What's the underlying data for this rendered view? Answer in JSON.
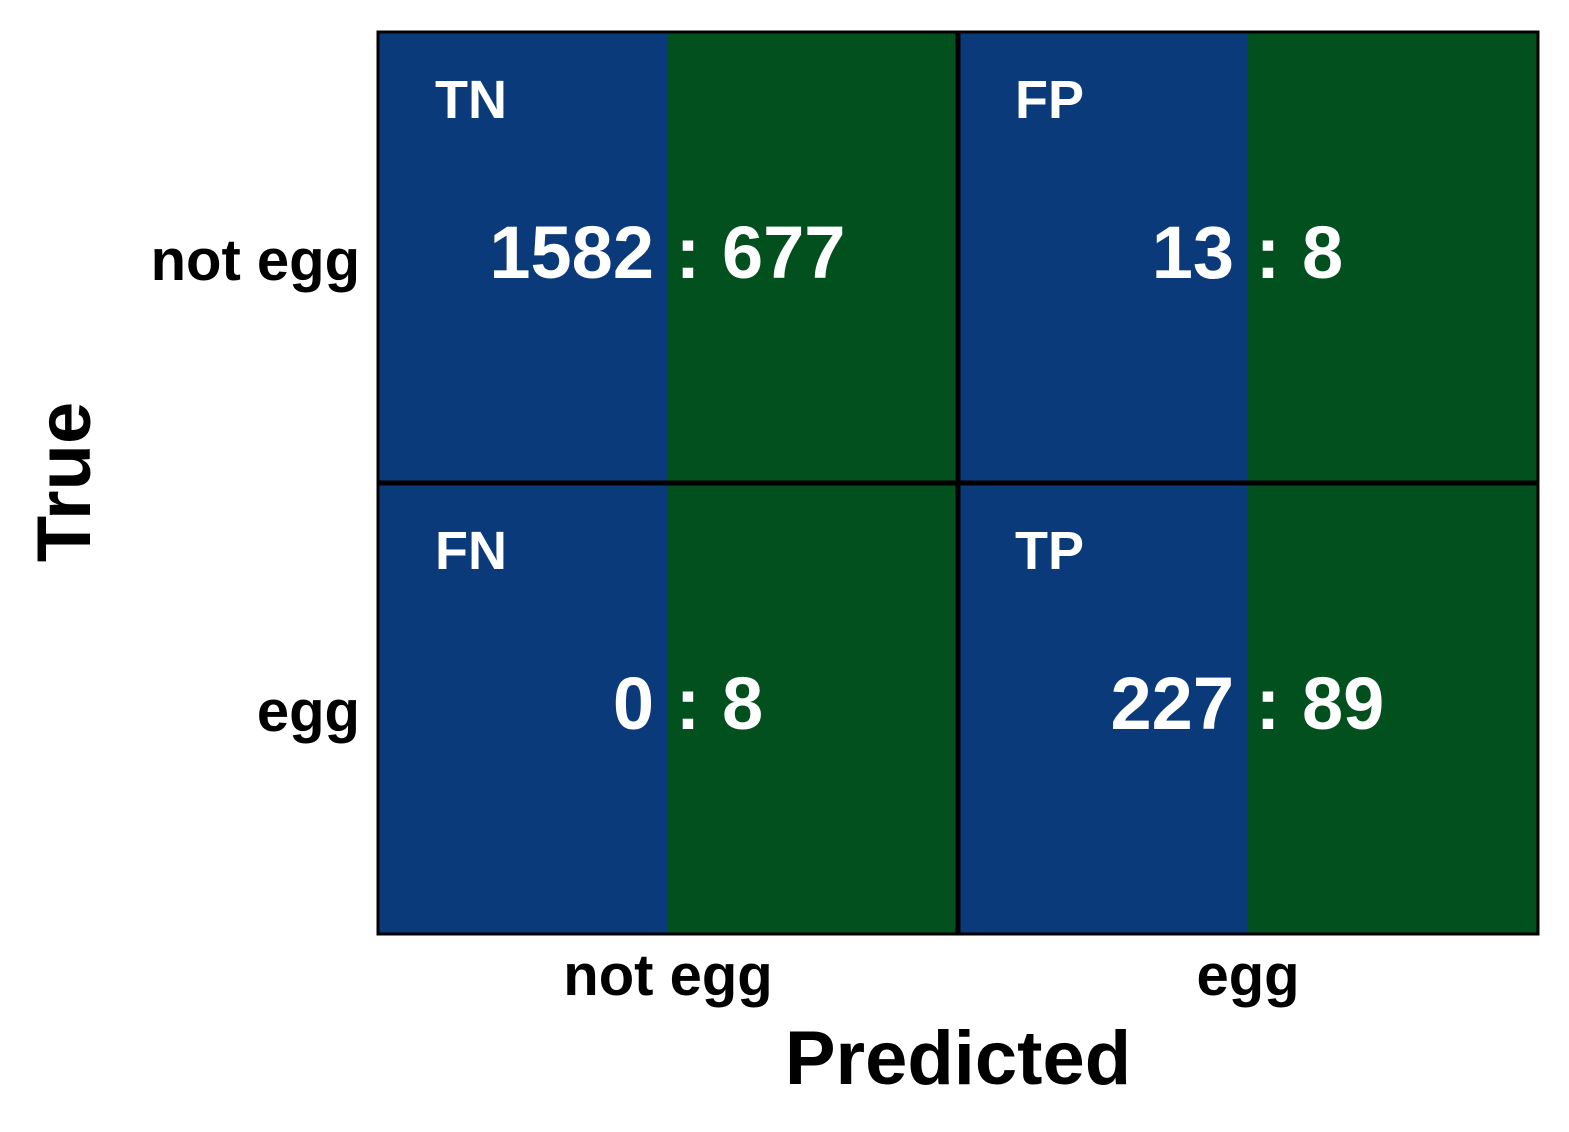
{
  "chart_data": {
    "type": "heatmap",
    "title": "",
    "xlabel": "Predicted",
    "ylabel": "True",
    "x_categories": [
      "not egg",
      "egg"
    ],
    "y_categories": [
      "not egg",
      "egg"
    ],
    "split_colors": {
      "left": "#0b3a7a",
      "right": "#03501f"
    },
    "text_colors": {
      "left": "#ffffff",
      "right": "#ffffff"
    },
    "grid_color": "#000000",
    "cells": [
      {
        "row": 0,
        "col": 0,
        "tag": "TN",
        "left_value": 1582,
        "right_value": 677
      },
      {
        "row": 0,
        "col": 1,
        "tag": "FP",
        "left_value": 13,
        "right_value": 8
      },
      {
        "row": 1,
        "col": 0,
        "tag": "FN",
        "left_value": 0,
        "right_value": 8
      },
      {
        "row": 1,
        "col": 1,
        "tag": "TP",
        "left_value": 227,
        "right_value": 89
      }
    ],
    "separator": ":"
  }
}
